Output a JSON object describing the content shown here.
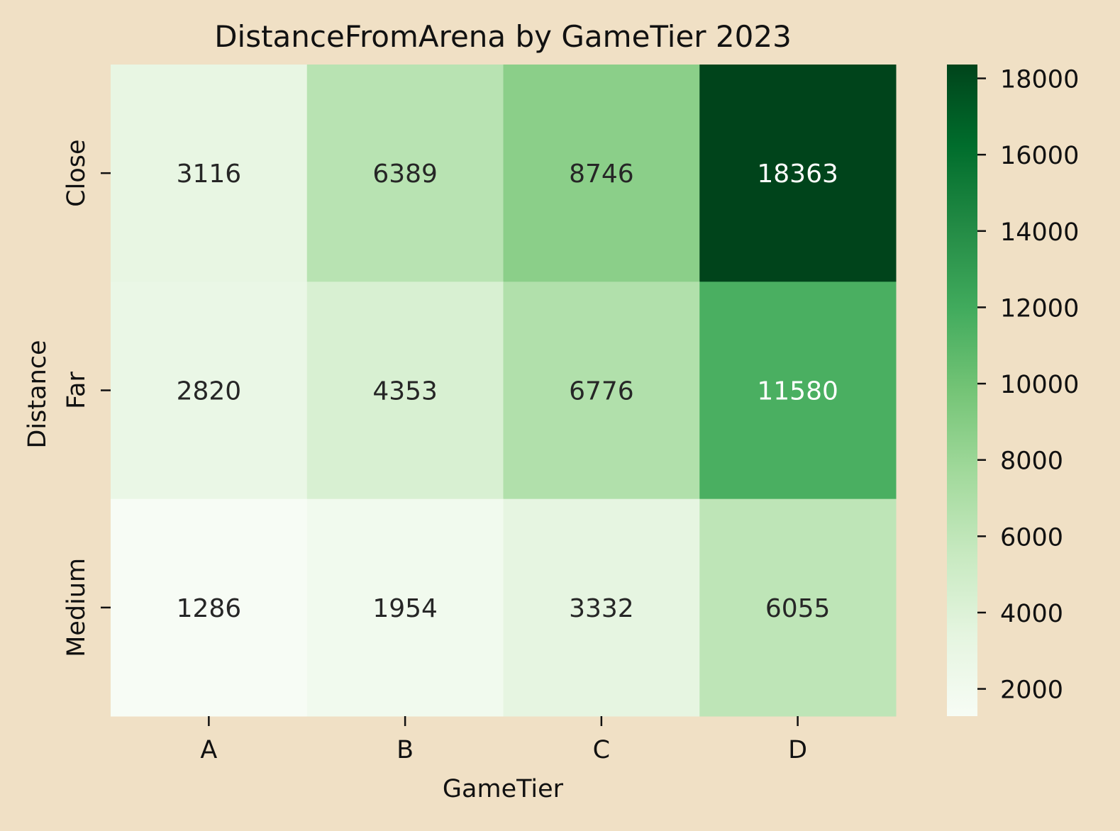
{
  "chart_data": {
    "type": "heatmap",
    "title": "DistanceFromArena by GameTier 2023",
    "xlabel": "GameTier",
    "ylabel": "Distance",
    "x_categories": [
      "A",
      "B",
      "C",
      "D"
    ],
    "y_categories": [
      "Close",
      "Far",
      "Medium"
    ],
    "values": [
      [
        3116,
        6389,
        8746,
        18363
      ],
      [
        2820,
        4353,
        6776,
        11580
      ],
      [
        1286,
        1954,
        3332,
        6055
      ]
    ],
    "colorbar": {
      "min": 1286,
      "max": 18363,
      "ticks": [
        2000,
        4000,
        6000,
        8000,
        10000,
        12000,
        14000,
        16000,
        18000
      ],
      "colormap": "Greens",
      "colors": [
        "#f7fcf5",
        "#e5f5e0",
        "#c7e9c0",
        "#a1d99b",
        "#74c476",
        "#41ab5d",
        "#238b45",
        "#006d2c",
        "#00441b"
      ]
    },
    "background_color": "#f0e0c5",
    "grid": false
  }
}
